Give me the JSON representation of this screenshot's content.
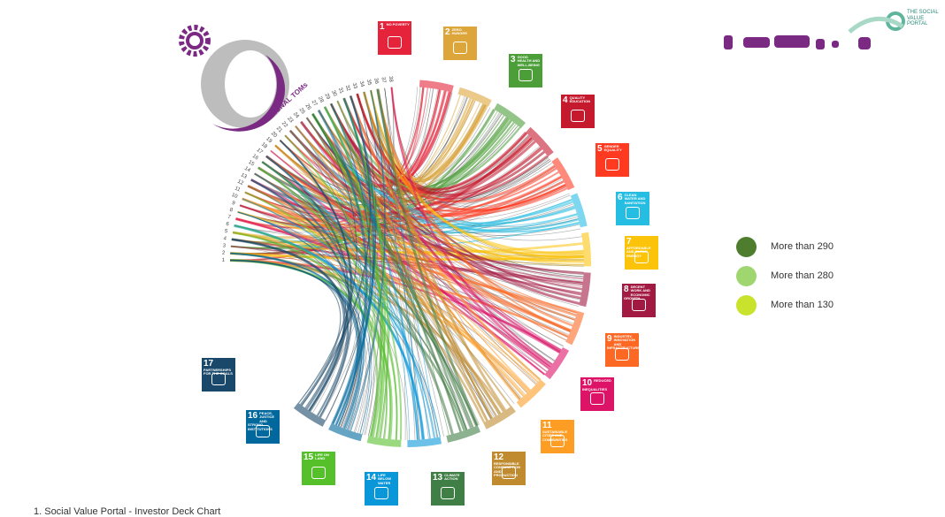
{
  "logo": {
    "text": "NATIONAL TOMs"
  },
  "portal": {
    "text": "THE SOCIAL VALUE PORTAL"
  },
  "toms": [
    "1",
    "2",
    "3",
    "4",
    "5",
    "6",
    "7",
    "8",
    "9",
    "10",
    "11",
    "12",
    "13",
    "14",
    "15",
    "16",
    "17",
    "18",
    "19",
    "20",
    "21",
    "22",
    "23",
    "24",
    "25",
    "26",
    "27",
    "28",
    "29",
    "30",
    "31",
    "32",
    "33",
    "34",
    "35",
    "36",
    "37",
    "38"
  ],
  "goals": [
    {
      "number": "1",
      "title": "NO POVERTY",
      "color": "#e5243b"
    },
    {
      "number": "2",
      "title": "ZERO HUNGER",
      "color": "#dda63a"
    },
    {
      "number": "3",
      "title": "GOOD HEALTH AND WELL-BEING",
      "color": "#4c9f38"
    },
    {
      "number": "4",
      "title": "QUALITY EDUCATION",
      "color": "#c5192d"
    },
    {
      "number": "5",
      "title": "GENDER EQUALITY",
      "color": "#ff3a21"
    },
    {
      "number": "6",
      "title": "CLEAN WATER AND SANITATION",
      "color": "#26bde2"
    },
    {
      "number": "7",
      "title": "AFFORDABLE AND CLEAN ENERGY",
      "color": "#fcc30b"
    },
    {
      "number": "8",
      "title": "DECENT WORK AND ECONOMIC GROWTH",
      "color": "#a21942"
    },
    {
      "number": "9",
      "title": "INDUSTRY, INNOVATION AND INFRASTRUCTURE",
      "color": "#fd6925"
    },
    {
      "number": "10",
      "title": "REDUCED INEQUALITIES",
      "color": "#dd1367"
    },
    {
      "number": "11",
      "title": "SUSTAINABLE CITIES AND COMMUNITIES",
      "color": "#fd9d24"
    },
    {
      "number": "12",
      "title": "RESPONSIBLE CONSUMPTION AND PRODUCTION",
      "color": "#bf8b2e"
    },
    {
      "number": "13",
      "title": "CLIMATE ACTION",
      "color": "#3f7e44"
    },
    {
      "number": "14",
      "title": "LIFE BELOW WATER",
      "color": "#0a97d9"
    },
    {
      "number": "15",
      "title": "LIFE ON LAND",
      "color": "#56c02b"
    },
    {
      "number": "16",
      "title": "PEACE, JUSTICE AND STRONG INSTITUTIONS",
      "color": "#00689d"
    },
    {
      "number": "17",
      "title": "PARTNERSHIPS FOR THE GOALS",
      "color": "#19486a"
    }
  ],
  "legend": [
    {
      "label": "More than 290",
      "color": "#4e7d2e"
    },
    {
      "label": "More than 280",
      "color": "#9fd66f"
    },
    {
      "label": "More than 130",
      "color": "#c9e22c"
    }
  ],
  "footer": "1. Social Value Portal - Investor Deck Chart"
}
